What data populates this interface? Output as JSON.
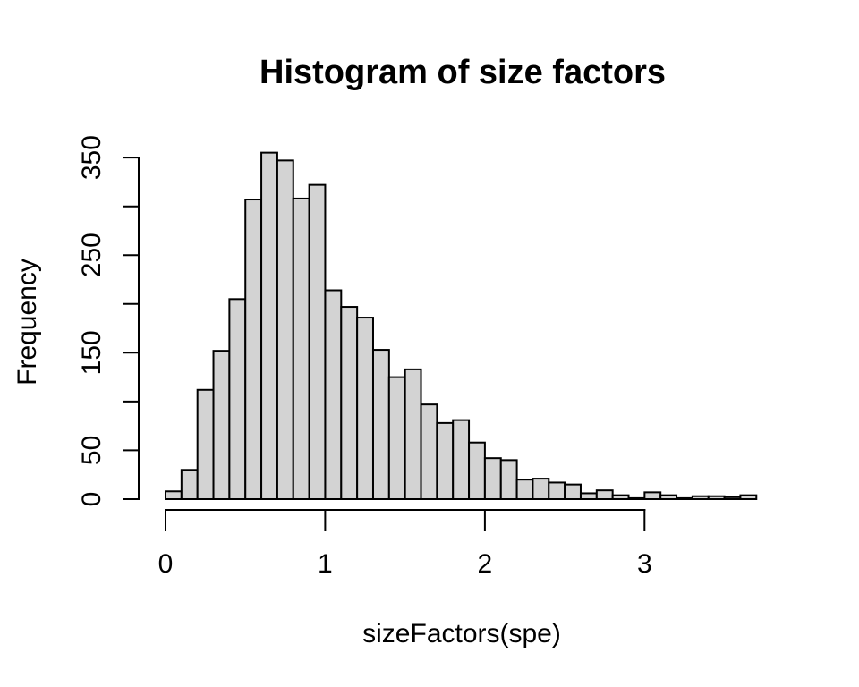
{
  "chart_data": {
    "type": "bar",
    "subtype": "histogram",
    "title": "Histogram of size factors",
    "xlabel": "sizeFactors(spe)",
    "ylabel": "Frequency",
    "bin_start": 0.0,
    "bin_width": 0.1,
    "frequencies": [
      8,
      30,
      112,
      152,
      205,
      307,
      355,
      347,
      308,
      322,
      214,
      197,
      186,
      153,
      125,
      133,
      97,
      78,
      81,
      58,
      42,
      40,
      20,
      21,
      17,
      15,
      6,
      9,
      4,
      1,
      7,
      4,
      1,
      3,
      3,
      2,
      4
    ],
    "x_ticks": [
      {
        "value": 0,
        "label": "0"
      },
      {
        "value": 1,
        "label": "1"
      },
      {
        "value": 2,
        "label": "2"
      },
      {
        "value": 3,
        "label": "3"
      }
    ],
    "y_ticks": [
      {
        "value": 0,
        "label": "0"
      },
      {
        "value": 50,
        "label": "50"
      },
      {
        "value": 100,
        "label": ""
      },
      {
        "value": 150,
        "label": "150"
      },
      {
        "value": 200,
        "label": ""
      },
      {
        "value": 250,
        "label": "250"
      },
      {
        "value": 300,
        "label": ""
      },
      {
        "value": 350,
        "label": "350"
      }
    ],
    "xlim": [
      0,
      3.7
    ],
    "ylim": [
      0,
      350
    ],
    "x_axis_range": [
      0,
      3
    ],
    "grid": false,
    "legend_position": "none",
    "bar_fill": "#d3d3d3",
    "bar_stroke": "#000000",
    "axis_color": "#000000",
    "background": "#ffffff"
  }
}
